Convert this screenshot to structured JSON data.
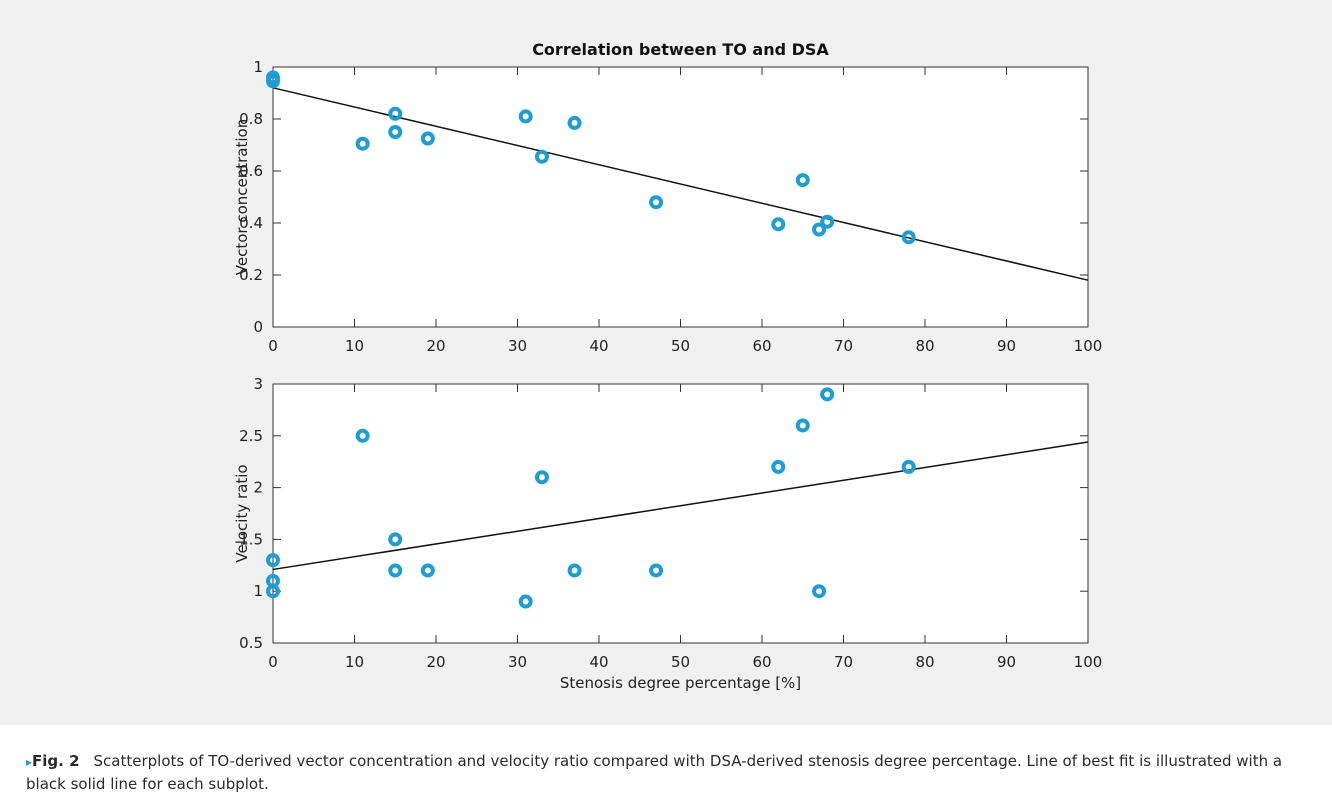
{
  "chart_data": [
    {
      "type": "scatter",
      "title": "Correlation between TO and DSA",
      "xlabel": "",
      "ylabel": "Vector concentration",
      "xlim": [
        0,
        100
      ],
      "ylim": [
        0,
        1
      ],
      "x_ticks": [
        "0",
        "10",
        "20",
        "30",
        "40",
        "50",
        "60",
        "70",
        "80",
        "90",
        "100"
      ],
      "y_ticks": [
        "0",
        "0.2",
        "0.4",
        "0.6",
        "0.8",
        "1"
      ],
      "points": [
        {
          "x": 0,
          "y": 0.96
        },
        {
          "x": 0,
          "y": 0.945
        },
        {
          "x": 11,
          "y": 0.705
        },
        {
          "x": 15,
          "y": 0.82
        },
        {
          "x": 15,
          "y": 0.75
        },
        {
          "x": 19,
          "y": 0.725
        },
        {
          "x": 31,
          "y": 0.81
        },
        {
          "x": 33,
          "y": 0.655
        },
        {
          "x": 37,
          "y": 0.785
        },
        {
          "x": 47,
          "y": 0.48
        },
        {
          "x": 62,
          "y": 0.395
        },
        {
          "x": 65,
          "y": 0.565
        },
        {
          "x": 67,
          "y": 0.375
        },
        {
          "x": 68,
          "y": 0.405
        },
        {
          "x": 78,
          "y": 0.345
        }
      ],
      "fit_line": {
        "x": [
          0,
          100
        ],
        "y": [
          0.92,
          0.18
        ]
      },
      "grid": false,
      "colors": {
        "point": "#1a9ed4",
        "fit_line": "#111111"
      }
    },
    {
      "type": "scatter",
      "title": "",
      "xlabel": "Stenosis degree percentage [%]",
      "ylabel": "Velocity ratio",
      "xlim": [
        0,
        100
      ],
      "ylim": [
        0.5,
        3
      ],
      "x_ticks": [
        "0",
        "10",
        "20",
        "30",
        "40",
        "50",
        "60",
        "70",
        "80",
        "90",
        "100"
      ],
      "y_ticks": [
        "0.5",
        "1",
        "1.5",
        "2",
        "2.5",
        "3"
      ],
      "points": [
        {
          "x": 0,
          "y": 1.3
        },
        {
          "x": 0,
          "y": 1.1
        },
        {
          "x": 0,
          "y": 1.0
        },
        {
          "x": 11,
          "y": 2.5
        },
        {
          "x": 15,
          "y": 1.5
        },
        {
          "x": 15,
          "y": 1.2
        },
        {
          "x": 19,
          "y": 1.2
        },
        {
          "x": 31,
          "y": 0.9
        },
        {
          "x": 33,
          "y": 2.1
        },
        {
          "x": 37,
          "y": 1.2
        },
        {
          "x": 47,
          "y": 1.2
        },
        {
          "x": 62,
          "y": 2.2
        },
        {
          "x": 65,
          "y": 2.6
        },
        {
          "x": 67,
          "y": 1.0
        },
        {
          "x": 68,
          "y": 2.9
        },
        {
          "x": 78,
          "y": 2.2
        }
      ],
      "fit_line": {
        "x": [
          0,
          100
        ],
        "y": [
          1.21,
          2.44
        ]
      },
      "grid": false,
      "colors": {
        "point": "#1a9ed4",
        "fit_line": "#111111"
      }
    }
  ],
  "caption": {
    "arrow": "▸",
    "label": "Fig. 2",
    "text": "Scatterplots of TO-derived vector concentration and velocity ratio compared with DSA-derived stenosis degree percentage. Line of best fit is illustrated with a black solid line for each subplot."
  },
  "colors": {
    "panel_background": "#f0f0f0",
    "caption_arrow": "#1aa0d4"
  }
}
